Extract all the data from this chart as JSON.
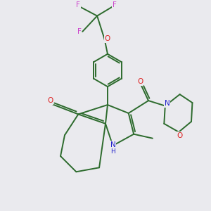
{
  "background_color": "#eaeaee",
  "bond_color": "#2d6b2d",
  "atom_colors": {
    "F": "#cc44cc",
    "O": "#dd2222",
    "N": "#2222cc",
    "C": "#2d6b2d",
    "H": "#333333"
  },
  "figsize": [
    3.0,
    3.0
  ],
  "dpi": 100,
  "lw": 1.4,
  "fontsize": 7.5
}
